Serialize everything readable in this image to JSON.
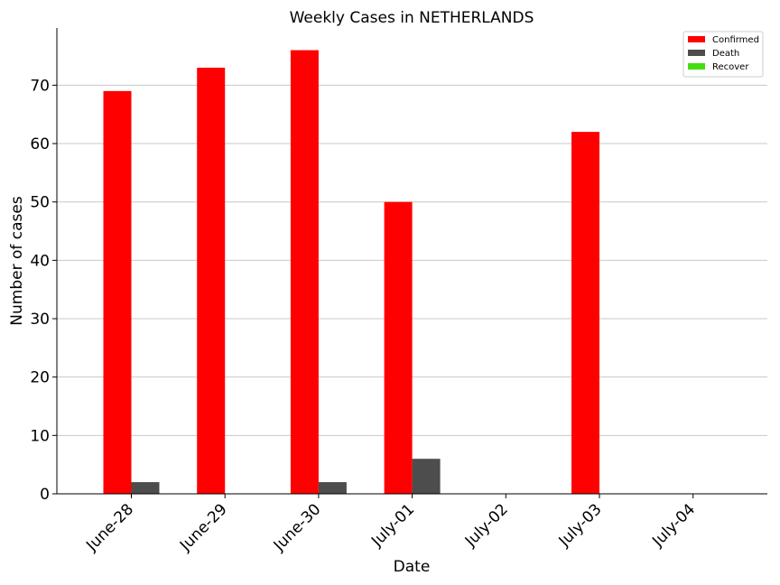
{
  "chart_data": {
    "type": "bar",
    "title": "Weekly Cases in NETHERLANDS",
    "xlabel": "Date",
    "ylabel": "Number of cases",
    "categories": [
      "June-28",
      "June-29",
      "June-30",
      "July-01",
      "July-02",
      "July-03",
      "July-04"
    ],
    "series": [
      {
        "name": "Confirmed",
        "color": "#ff0000",
        "values": [
          69,
          73,
          76,
          50,
          0,
          62,
          0
        ]
      },
      {
        "name": "Death",
        "color": "#4d4d4d",
        "values": [
          2,
          0,
          2,
          6,
          0,
          0,
          0
        ]
      },
      {
        "name": "Recover",
        "color": "#44dd11",
        "values": [
          0,
          0,
          0,
          0,
          0,
          0,
          0
        ]
      }
    ],
    "yticks": [
      0,
      10,
      20,
      30,
      40,
      50,
      60,
      70
    ],
    "ylim": [
      0,
      79.8
    ],
    "grid": "horizontal",
    "legend_position": "top-right"
  }
}
